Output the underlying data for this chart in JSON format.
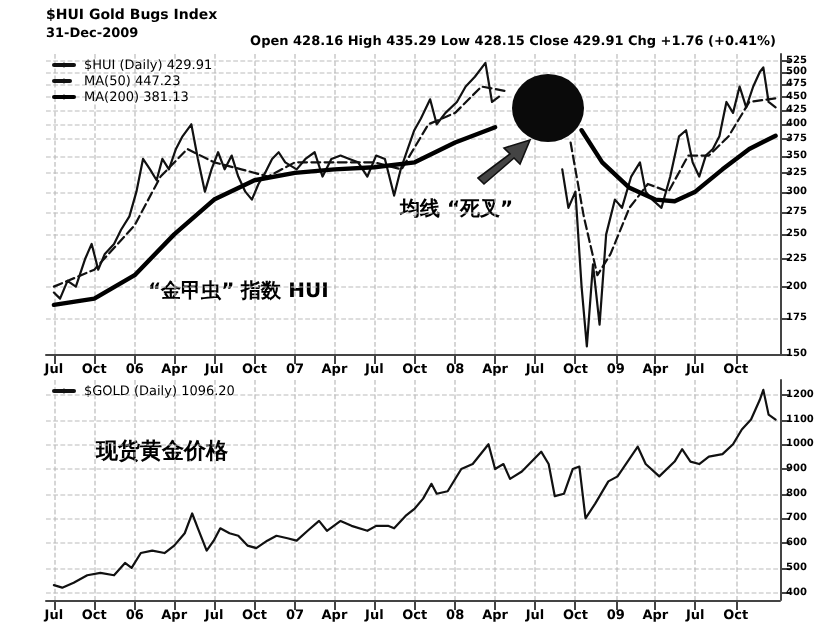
{
  "chart_data": [
    {
      "type": "line",
      "title": "$HUI Gold Bugs Index",
      "subtitle": "31-Dec-2009",
      "annotations": [
        "Open 428.16 High 435.29 Low 428.15 Close 429.91 Chg +1.76 (+0.41%)",
        "“金甲虫” 指数 HUI",
        "均线 “死叉”"
      ],
      "log": true,
      "grid": true,
      "legend": "top left",
      "xlim": [
        "2005-06-13",
        "2010-01-10"
      ],
      "xticks": [
        {
          "value": "2005-07",
          "label": "Jul"
        },
        {
          "value": "2005-10",
          "label": "Oct"
        },
        {
          "value": "2006-01",
          "label": "06"
        },
        {
          "value": "2006-04",
          "label": "Apr"
        },
        {
          "value": "2006-07",
          "label": "Jul"
        },
        {
          "value": "2006-10",
          "label": "Oct"
        },
        {
          "value": "2007-01",
          "label": "07"
        },
        {
          "value": "2007-04",
          "label": "Apr"
        },
        {
          "value": "2007-07",
          "label": "Jul"
        },
        {
          "value": "2007-10",
          "label": "Oct"
        },
        {
          "value": "2008-01",
          "label": "08"
        },
        {
          "value": "2008-04",
          "label": "Apr"
        },
        {
          "value": "2008-07",
          "label": "Jul"
        },
        {
          "value": "2008-10",
          "label": "Oct"
        },
        {
          "value": "2009-01",
          "label": "09"
        },
        {
          "value": "2009-04",
          "label": "Apr"
        },
        {
          "value": "2009-07",
          "label": "Jul"
        },
        {
          "value": "2009-10",
          "label": "Oct"
        }
      ],
      "ylim": [
        150,
        540
      ],
      "yticks": [
        150,
        175,
        200,
        225,
        250,
        275,
        300,
        325,
        350,
        375,
        400,
        425,
        450,
        475,
        500,
        525
      ],
      "series": [
        {
          "name": "$HUI (Daily) 429.91",
          "color": "#111111",
          "line_style": "solid",
          "x": [
            "2005-07-01",
            "2005-07-15",
            "2005-08-01",
            "2005-08-20",
            "2005-09-10",
            "2005-09-25",
            "2005-10-10",
            "2005-10-25",
            "2005-11-15",
            "2005-12-01",
            "2005-12-20",
            "2006-01-05",
            "2006-01-20",
            "2006-02-05",
            "2006-02-20",
            "2006-03-05",
            "2006-03-20",
            "2006-04-05",
            "2006-04-20",
            "2006-05-10",
            "2006-05-25",
            "2006-06-10",
            "2006-06-25",
            "2006-07-10",
            "2006-07-25",
            "2006-08-10",
            "2006-08-25",
            "2006-09-10",
            "2006-09-25",
            "2006-10-10",
            "2006-10-25",
            "2006-11-10",
            "2006-11-25",
            "2006-12-10",
            "2007-01-05",
            "2007-01-25",
            "2007-02-15",
            "2007-03-05",
            "2007-03-25",
            "2007-04-15",
            "2007-05-05",
            "2007-05-25",
            "2007-06-15",
            "2007-07-05",
            "2007-07-25",
            "2007-08-15",
            "2007-08-30",
            "2007-09-15",
            "2007-09-30",
            "2007-10-15",
            "2007-11-05",
            "2007-11-20",
            "2007-12-10",
            "2008-01-05",
            "2008-01-25",
            "2008-02-15",
            "2008-03-10",
            "2008-03-25",
            "2008-04-10",
            "2008-04-30",
            "2008-05-20",
            "2008-06-05",
            "2008-06-20",
            "2008-07-15",
            "2008-08-10",
            "2008-09-01",
            "2008-09-15",
            "2008-10-01",
            "2008-10-15",
            "2008-10-27",
            "2008-11-10",
            "2008-11-25",
            "2008-12-10",
            "2008-12-30",
            "2009-01-15",
            "2009-02-05",
            "2009-02-25",
            "2009-03-10",
            "2009-03-25",
            "2009-04-15",
            "2009-05-05",
            "2009-05-25",
            "2009-06-10",
            "2009-06-25",
            "2009-07-10",
            "2009-07-25",
            "2009-08-10",
            "2009-08-25",
            "2009-09-10",
            "2009-09-25",
            "2009-10-10",
            "2009-10-25",
            "2009-11-10",
            "2009-11-25",
            "2009-12-03",
            "2009-12-15",
            "2009-12-31"
          ],
          "values": [
            195,
            190,
            205,
            200,
            225,
            240,
            215,
            230,
            240,
            255,
            270,
            300,
            345,
            330,
            315,
            345,
            330,
            360,
            380,
            400,
            345,
            300,
            330,
            355,
            330,
            350,
            320,
            300,
            290,
            310,
            325,
            345,
            355,
            340,
            330,
            345,
            355,
            320,
            345,
            350,
            345,
            340,
            320,
            350,
            345,
            295,
            330,
            360,
            390,
            410,
            445,
            400,
            420,
            440,
            470,
            490,
            520,
            440,
            450,
            null,
            null,
            null,
            null,
            null,
            null,
            330,
            280,
            300,
            200,
            155,
            220,
            170,
            250,
            290,
            280,
            320,
            340,
            300,
            290,
            280,
            320,
            380,
            390,
            340,
            320,
            350,
            360,
            380,
            440,
            420,
            470,
            430,
            470,
            500,
            510,
            440,
            430
          ]
        },
        {
          "name": "MA(50) 447.23",
          "color": "#111111",
          "line_style": "dashed",
          "x": [
            "2005-07-01",
            "2005-10-01",
            "2006-01-01",
            "2006-03-01",
            "2006-05-01",
            "2006-07-01",
            "2006-09-01",
            "2006-11-01",
            "2007-01-01",
            "2007-04-01",
            "2007-07-01",
            "2007-09-01",
            "2007-11-01",
            "2008-01-01",
            "2008-03-01",
            "2008-05-01",
            "2008-06-15",
            "2008-09-20",
            "2008-10-20",
            "2008-11-20",
            "2008-12-20",
            "2009-02-01",
            "2009-03-15",
            "2009-05-01",
            "2009-06-15",
            "2009-08-01",
            "2009-09-15",
            "2009-11-01",
            "2009-12-31"
          ],
          "values": [
            200,
            215,
            260,
            320,
            360,
            340,
            330,
            320,
            340,
            340,
            340,
            330,
            400,
            420,
            470,
            460,
            null,
            370,
            270,
            210,
            230,
            280,
            310,
            300,
            350,
            350,
            380,
            440,
            447
          ]
        },
        {
          "name": "MA(200) 381.13",
          "color": "#000000",
          "line_style": "solid",
          "x": [
            "2005-07-01",
            "2005-10-01",
            "2006-01-01",
            "2006-04-01",
            "2006-07-01",
            "2006-10-01",
            "2007-01-01",
            "2007-04-01",
            "2007-07-01",
            "2007-10-01",
            "2008-01-01",
            "2008-04-01",
            "2008-05-20",
            "2008-07-01",
            "2008-10-15",
            "2008-12-01",
            "2009-02-01",
            "2009-04-01",
            "2009-05-15",
            "2009-07-01",
            "2009-09-01",
            "2009-11-01",
            "2009-12-31"
          ],
          "values": [
            185,
            190,
            210,
            250,
            290,
            315,
            325,
            330,
            333,
            340,
            370,
            395,
            null,
            null,
            390,
            340,
            305,
            290,
            288,
            300,
            330,
            360,
            381
          ]
        }
      ]
    },
    {
      "type": "line",
      "annotations": [
        "现货黄金价格"
      ],
      "grid": true,
      "legend": "top left",
      "xlim": [
        "2005-06-13",
        "2010-01-10"
      ],
      "xticks": [
        {
          "value": "2005-07",
          "label": "Jul"
        },
        {
          "value": "2005-10",
          "label": "Oct"
        },
        {
          "value": "2006-01",
          "label": "06"
        },
        {
          "value": "2006-04",
          "label": "Apr"
        },
        {
          "value": "2006-07",
          "label": "Jul"
        },
        {
          "value": "2006-10",
          "label": "Oct"
        },
        {
          "value": "2007-01",
          "label": "07"
        },
        {
          "value": "2007-04",
          "label": "Apr"
        },
        {
          "value": "2007-07",
          "label": "Jul"
        },
        {
          "value": "2007-10",
          "label": "Oct"
        },
        {
          "value": "2008-01",
          "label": "08"
        },
        {
          "value": "2008-04",
          "label": "Apr"
        },
        {
          "value": "2008-07",
          "label": "Jul"
        },
        {
          "value": "2008-10",
          "label": "Oct"
        },
        {
          "value": "2009-01",
          "label": "09"
        },
        {
          "value": "2009-04",
          "label": "Apr"
        },
        {
          "value": "2009-07",
          "label": "Jul"
        },
        {
          "value": "2009-10",
          "label": "Oct"
        }
      ],
      "ylim": [
        370,
        1260
      ],
      "yticks": [
        400,
        500,
        600,
        700,
        800,
        900,
        1000,
        1100,
        1200
      ],
      "series": [
        {
          "name": "$GOLD (Daily) 1096.20",
          "color": "#111111",
          "line_style": "solid",
          "x": [
            "2005-07-01",
            "2005-07-20",
            "2005-08-15",
            "2005-09-15",
            "2005-10-15",
            "2005-11-15",
            "2005-12-10",
            "2005-12-25",
            "2006-01-15",
            "2006-02-10",
            "2006-03-10",
            "2006-04-01",
            "2006-04-25",
            "2006-05-12",
            "2006-05-25",
            "2006-06-14",
            "2006-06-30",
            "2006-07-15",
            "2006-08-05",
            "2006-08-25",
            "2006-09-15",
            "2006-10-05",
            "2006-10-30",
            "2006-11-20",
            "2006-12-15",
            "2007-01-05",
            "2007-01-30",
            "2007-02-25",
            "2007-03-15",
            "2007-04-15",
            "2007-05-10",
            "2007-06-15",
            "2007-07-05",
            "2007-08-01",
            "2007-08-15",
            "2007-09-10",
            "2007-10-01",
            "2007-10-20",
            "2007-11-08",
            "2007-11-20",
            "2007-12-15",
            "2008-01-15",
            "2008-02-10",
            "2008-03-17",
            "2008-04-01",
            "2008-04-20",
            "2008-05-05",
            "2008-06-01",
            "2008-07-15",
            "2008-08-01",
            "2008-08-15",
            "2008-09-05",
            "2008-09-25",
            "2008-10-10",
            "2008-10-24",
            "2008-11-15",
            "2008-12-15",
            "2009-01-05",
            "2009-02-20",
            "2009-03-10",
            "2009-04-10",
            "2009-05-15",
            "2009-06-01",
            "2009-06-20",
            "2009-07-10",
            "2009-08-01",
            "2009-09-01",
            "2009-09-25",
            "2009-10-15",
            "2009-11-05",
            "2009-11-25",
            "2009-12-03",
            "2009-12-15",
            "2009-12-31"
          ],
          "values": [
            430,
            420,
            440,
            470,
            480,
            470,
            520,
            500,
            560,
            570,
            560,
            590,
            640,
            720,
            660,
            570,
            610,
            660,
            640,
            630,
            590,
            580,
            610,
            630,
            620,
            610,
            650,
            690,
            650,
            690,
            670,
            650,
            670,
            670,
            660,
            710,
            740,
            780,
            840,
            800,
            810,
            900,
            920,
            1000,
            900,
            920,
            860,
            890,
            970,
            920,
            790,
            800,
            900,
            910,
            700,
            760,
            850,
            870,
            990,
            920,
            870,
            930,
            980,
            930,
            920,
            950,
            960,
            1000,
            1060,
            1100,
            1180,
            1220,
            1120,
            1100
          ]
        }
      ]
    }
  ]
}
